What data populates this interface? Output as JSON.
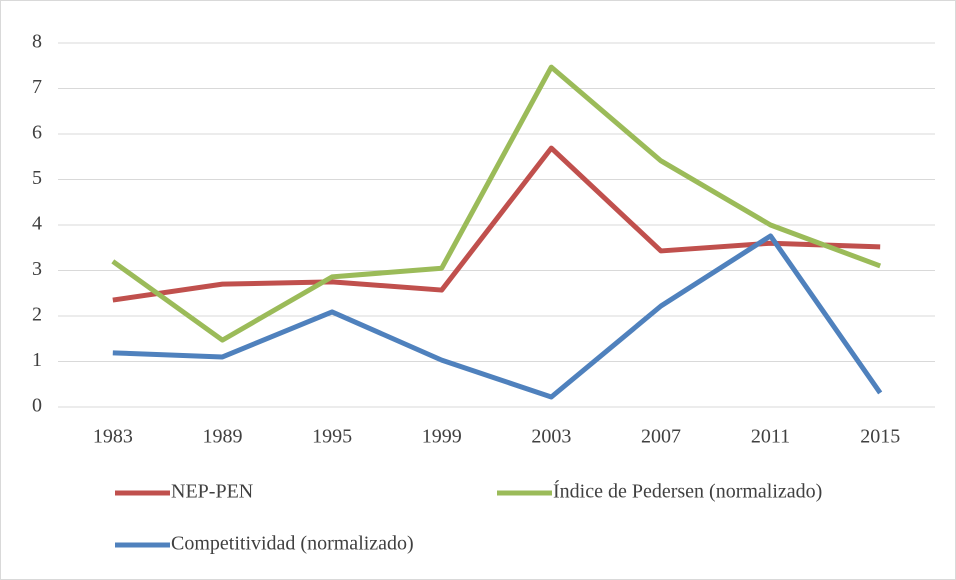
{
  "chart_data": {
    "type": "line",
    "categories": [
      "1983",
      "1989",
      "1995",
      "1999",
      "2003",
      "2007",
      "2011",
      "2015"
    ],
    "series": [
      {
        "name": "NEP-PEN",
        "color": "#c0504d",
        "values": [
          2.35,
          2.7,
          2.75,
          2.57,
          5.69,
          3.43,
          3.6,
          3.52
        ]
      },
      {
        "name": "Índice de Pedersen (normalizado)",
        "color": "#9bbb59",
        "values": [
          3.2,
          1.47,
          2.86,
          3.05,
          7.47,
          5.41,
          4.0,
          3.1
        ]
      },
      {
        "name": "Competitividad (normalizado)",
        "color": "#4f81bd",
        "values": [
          1.19,
          1.1,
          2.09,
          1.03,
          0.22,
          2.22,
          3.76,
          0.31
        ]
      }
    ],
    "ylim": [
      0,
      8
    ],
    "yticks": [
      0,
      1,
      2,
      3,
      4,
      5,
      6,
      7,
      8
    ],
    "grid": true
  }
}
